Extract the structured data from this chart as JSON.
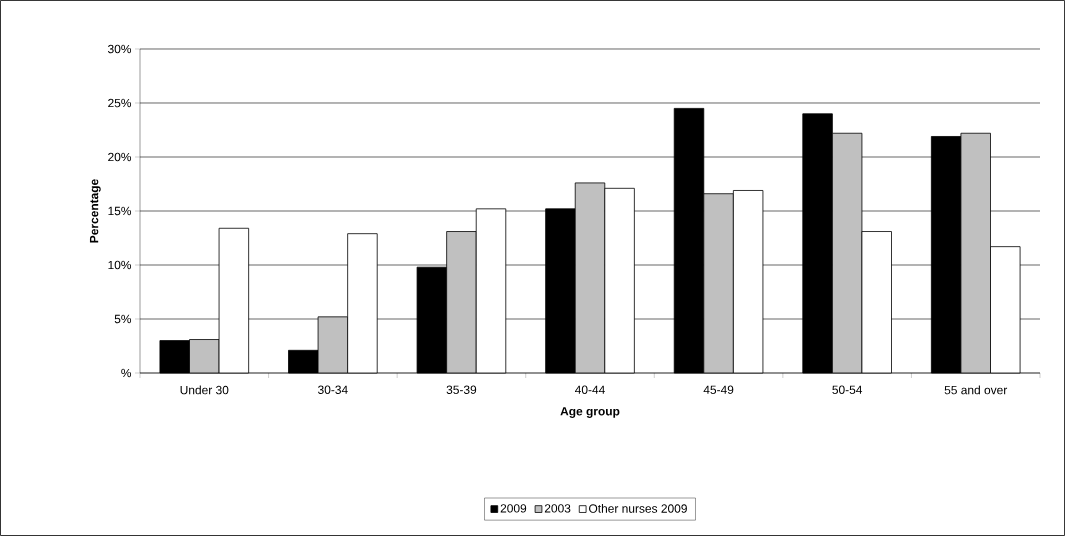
{
  "chart_data": {
    "type": "bar",
    "xlabel": "Age group",
    "ylabel": "Percentage",
    "categories": [
      "Under 30",
      "30-34",
      "35-39",
      "40-44",
      "45-49",
      "50-54",
      "55 and over"
    ],
    "series": [
      {
        "name": "2009",
        "color": "#000000",
        "values": [
          3.0,
          2.1,
          9.8,
          15.2,
          24.5,
          24.0,
          21.9
        ]
      },
      {
        "name": "2003",
        "color": "#c0c0c0",
        "values": [
          3.1,
          5.2,
          13.1,
          17.6,
          16.6,
          22.2,
          22.2
        ]
      },
      {
        "name": "Other nurses 2009",
        "color": "#ffffff",
        "values": [
          13.4,
          12.9,
          15.2,
          17.1,
          16.9,
          13.1,
          11.7
        ]
      }
    ],
    "ylim": [
      0,
      30
    ],
    "yticks": [
      {
        "value": 0,
        "label": "%"
      },
      {
        "value": 5,
        "label": "5%"
      },
      {
        "value": 10,
        "label": "10%"
      },
      {
        "value": 15,
        "label": "15%"
      },
      {
        "value": 20,
        "label": "20%"
      },
      {
        "value": 25,
        "label": "25%"
      },
      {
        "value": 30,
        "label": "30%"
      }
    ],
    "grid": "y",
    "legend": "bottom"
  }
}
